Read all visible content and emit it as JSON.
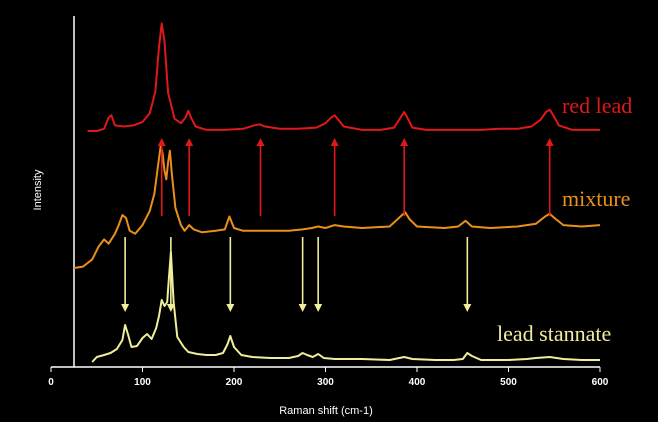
{
  "chart_data": {
    "type": "line",
    "title": "",
    "xlabel": "Raman shift (cm-1)",
    "ylabel": "Intensity",
    "xlim": [
      0,
      600
    ],
    "xticks": [
      0,
      100,
      200,
      300,
      400,
      500,
      600
    ],
    "background": "#000000",
    "series": [
      {
        "name": "red lead",
        "color": "#e01818",
        "x": [
          40,
          50,
          58,
          63,
          66,
          70,
          80,
          90,
          100,
          108,
          114,
          118,
          121,
          124,
          128,
          135,
          142,
          147,
          150,
          153,
          158,
          170,
          190,
          210,
          222,
          228,
          234,
          250,
          270,
          290,
          300,
          306,
          310,
          314,
          320,
          340,
          360,
          375,
          382,
          386,
          390,
          395,
          410,
          430,
          450,
          470,
          490,
          510,
          525,
          535,
          541,
          545,
          549,
          555,
          570,
          600
        ],
        "y": [
          0,
          0,
          2,
          12,
          14,
          5,
          4,
          5,
          8,
          16,
          35,
          75,
          96,
          80,
          34,
          11,
          7,
          12,
          18,
          12,
          4,
          1,
          1,
          2,
          5,
          6,
          4,
          2,
          2,
          3,
          7,
          12,
          14,
          10,
          4,
          1,
          1,
          3,
          12,
          17,
          11,
          3,
          1,
          1,
          1,
          1,
          2,
          2,
          4,
          10,
          17,
          19,
          14,
          5,
          1,
          1
        ]
      },
      {
        "name": "mixture",
        "color": "#e8901a",
        "x": [
          25,
          35,
          45,
          52,
          58,
          63,
          70,
          74,
          78,
          82,
          86,
          92,
          100,
          108,
          113,
          117,
          120,
          122,
          124,
          126,
          128,
          130,
          132,
          136,
          142,
          146,
          151,
          156,
          165,
          180,
          190,
          195,
          200,
          210,
          230,
          260,
          275,
          285,
          292,
          300,
          310,
          320,
          340,
          370,
          382,
          387,
          392,
          400,
          430,
          445,
          453,
          460,
          480,
          510,
          530,
          540,
          545,
          550,
          560,
          580,
          600
        ],
        "y": [
          0,
          1,
          6,
          15,
          20,
          17,
          24,
          30,
          37,
          35,
          26,
          24,
          30,
          40,
          52,
          72,
          86,
          80,
          68,
          62,
          74,
          82,
          66,
          42,
          30,
          26,
          30,
          27,
          25,
          26,
          27,
          36,
          28,
          26,
          26,
          26,
          27,
          28,
          29,
          28,
          30,
          29,
          28,
          29,
          36,
          39,
          34,
          29,
          28,
          29,
          33,
          29,
          28,
          29,
          31,
          36,
          38,
          35,
          30,
          29,
          30
        ]
      },
      {
        "name": "lead stannate",
        "color": "#f0ee9a",
        "x": [
          45,
          50,
          58,
          65,
          72,
          78,
          81,
          84,
          88,
          94,
          100,
          105,
          110,
          115,
          118,
          121,
          124,
          127,
          129,
          131,
          134,
          138,
          145,
          150,
          160,
          170,
          180,
          188,
          193,
          196,
          200,
          208,
          220,
          240,
          260,
          270,
          275,
          280,
          286,
          292,
          298,
          310,
          340,
          370,
          386,
          395,
          420,
          440,
          450,
          455,
          460,
          470,
          500,
          520,
          530,
          545,
          560,
          580,
          600
        ],
        "y": [
          0,
          5,
          7,
          9,
          13,
          22,
          37,
          28,
          15,
          16,
          24,
          28,
          23,
          34,
          46,
          62,
          56,
          60,
          85,
          110,
          60,
          25,
          15,
          10,
          8,
          7,
          7,
          9,
          18,
          26,
          15,
          7,
          5,
          4,
          4,
          6,
          9,
          7,
          5,
          8,
          4,
          3,
          3,
          2,
          5,
          3,
          2,
          2,
          3,
          9,
          6,
          2,
          2,
          3,
          4,
          5,
          3,
          2,
          2
        ]
      }
    ],
    "arrows": [
      {
        "type": "up",
        "color": "#e01818",
        "x": [
          121,
          151,
          229,
          310,
          386,
          545
        ]
      },
      {
        "type": "down",
        "color": "#f0ee9a",
        "x": [
          81,
          131,
          196,
          275,
          292,
          455
        ]
      }
    ]
  }
}
